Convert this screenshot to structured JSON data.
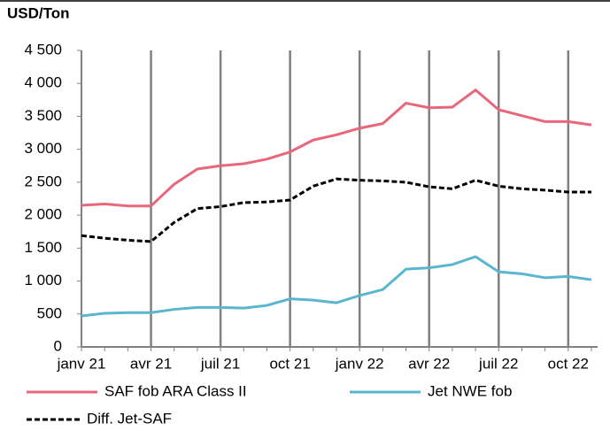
{
  "chart_data": {
    "type": "line",
    "title": "USD/Ton",
    "categories": [
      "janv 21",
      null,
      null,
      "avr 21",
      null,
      null,
      "juil 21",
      null,
      null,
      "oct 21",
      null,
      null,
      "janv 22",
      null,
      null,
      "avr 22",
      null,
      null,
      "juil 22",
      null,
      null,
      "oct 22",
      null
    ],
    "series": [
      {
        "name": "SAF fob ARA Class II",
        "color": "#e8677b",
        "style": "solid",
        "values": [
          2150,
          2170,
          2140,
          2140,
          2470,
          2700,
          2750,
          2780,
          2850,
          2960,
          3140,
          3220,
          3320,
          3390,
          3700,
          3630,
          3640,
          3900,
          3600,
          3510,
          3420,
          3420,
          3370
        ]
      },
      {
        "name": "Jet NWE fob",
        "color": "#5ab6cf",
        "style": "solid",
        "values": [
          470,
          510,
          520,
          520,
          570,
          600,
          600,
          590,
          630,
          730,
          710,
          670,
          780,
          870,
          1180,
          1200,
          1250,
          1370,
          1140,
          1110,
          1050,
          1070,
          1020
        ]
      },
      {
        "name": "Diff. Jet-SAF",
        "color": "#000000",
        "style": "dashed",
        "values": [
          1690,
          1650,
          1620,
          1600,
          1890,
          2100,
          2130,
          2190,
          2200,
          2230,
          2440,
          2550,
          2530,
          2520,
          2500,
          2430,
          2400,
          2530,
          2440,
          2400,
          2380,
          2350,
          2350
        ]
      }
    ],
    "ylim": [
      0,
      4500
    ],
    "yticks": [
      0,
      500,
      {
        "value": 1000,
        "label": "1 000"
      },
      {
        "value": 1500,
        "label": "1 500"
      },
      {
        "value": 2000,
        "label": "2 000"
      },
      {
        "value": 2500,
        "label": "2 500"
      },
      {
        "value": 3000,
        "label": "3 000"
      },
      {
        "value": 3500,
        "label": "3 500"
      },
      {
        "value": 4000,
        "label": "4 000"
      },
      {
        "value": 4500,
        "label": "4 500"
      }
    ],
    "x_grid": true,
    "legend": "bottom"
  }
}
